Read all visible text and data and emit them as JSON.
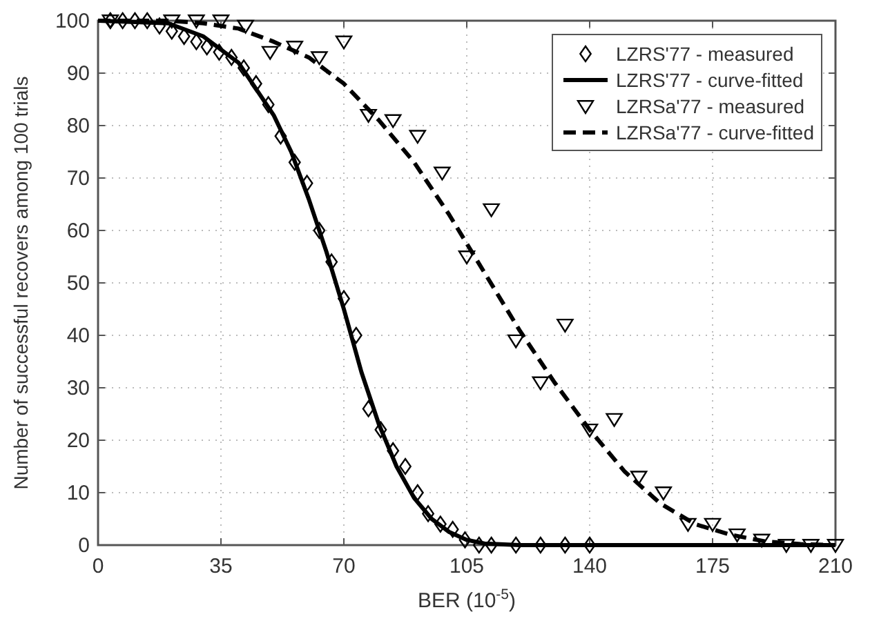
{
  "chart_data": {
    "type": "scatter",
    "xlabel": "BER (10$^{-5}$)",
    "ylabel": "Number of successful recovers among 100 trials",
    "xlim": [
      0,
      210
    ],
    "ylim": [
      0,
      100
    ],
    "xticks": [
      0,
      35,
      70,
      105,
      140,
      175,
      210
    ],
    "yticks": [
      0,
      10,
      20,
      30,
      40,
      50,
      60,
      70,
      80,
      90,
      100
    ],
    "grid": true,
    "legend": "top right",
    "series": [
      {
        "name": "LZRS'77 - measured",
        "marker": "diamond",
        "color": "#000000",
        "x": [
          3.5,
          7,
          10.5,
          14,
          17.5,
          21,
          24.5,
          28,
          31,
          34.5,
          38,
          41.5,
          45,
          48.5,
          52,
          56,
          59.5,
          63,
          66.5,
          70,
          73.5,
          77,
          80.5,
          84,
          87.5,
          91,
          94,
          97.5,
          101,
          104.5,
          108.5,
          112,
          119,
          126,
          133,
          140
        ],
        "values": [
          100,
          100,
          100,
          100,
          99,
          98,
          97,
          96,
          95,
          94,
          93,
          91,
          88,
          84,
          78,
          73,
          69,
          60,
          54,
          47,
          40,
          26,
          22,
          18,
          15,
          10,
          6,
          4,
          3,
          1,
          0,
          0,
          0,
          0,
          0,
          0
        ]
      },
      {
        "name": "LZRS'77 - curve-fitted",
        "type": "line",
        "line_style": "solid",
        "color": "#000000",
        "x": [
          0,
          20,
          30,
          40,
          50,
          55,
          60,
          65,
          70,
          75,
          80,
          85,
          90,
          95,
          100,
          105,
          110,
          120,
          210
        ],
        "values": [
          100,
          99.5,
          97,
          92,
          82,
          75,
          66,
          56,
          45,
          33,
          23,
          15,
          9,
          5,
          2.5,
          1,
          0.3,
          0,
          0
        ]
      },
      {
        "name": "LZRSa'77 - measured",
        "marker": "triangle",
        "color": "#000000",
        "x": [
          3.5,
          21,
          28,
          35,
          42,
          49,
          56,
          63,
          70,
          77,
          84,
          91,
          98,
          105,
          112,
          119,
          126,
          133,
          140,
          147,
          154,
          161,
          168,
          175,
          182,
          189,
          196,
          203,
          210
        ],
        "values": [
          100,
          100,
          100,
          100,
          99,
          94,
          95,
          93,
          96,
          82,
          81,
          78,
          71,
          55,
          64,
          39,
          31,
          42,
          22,
          24,
          13,
          10,
          4,
          4,
          2,
          1,
          0,
          0,
          0
        ]
      },
      {
        "name": "LZRSa'77 - curve-fitted",
        "type": "line",
        "line_style": "dashed",
        "color": "#000000",
        "x": [
          0,
          20,
          30,
          40,
          50,
          60,
          70,
          80,
          90,
          100,
          110,
          120,
          130,
          140,
          150,
          160,
          170,
          180,
          190,
          200,
          210
        ],
        "values": [
          100,
          100,
          99.5,
          98.5,
          96,
          93,
          88,
          81,
          73,
          63,
          52,
          41,
          31,
          22,
          14,
          8,
          4,
          2,
          0.7,
          0.2,
          0
        ]
      }
    ]
  }
}
